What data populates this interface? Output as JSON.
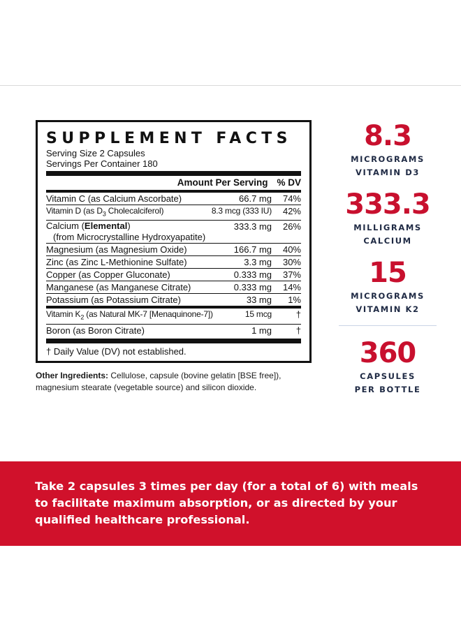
{
  "facts": {
    "title": "SUPPLEMENT FACTS",
    "serving_size": "Serving Size 2 Capsules",
    "servings_per_container": "Servings Per Container 180",
    "header_amount": "Amount Per Serving",
    "header_dv": "% DV",
    "rows": [
      {
        "name": "Vitamin C (as Calcium Ascorbate)",
        "amount": "66.7 mg",
        "dv": "74%"
      },
      {
        "name": "Vitamin D (as D",
        "sub": "3",
        "name_rest": " Cholecalciferol)",
        "amount": "8.3 mcg (333 IU)",
        "dv": "42%"
      },
      {
        "name": "Calcium (",
        "bold": "Elemental",
        "name_rest": ")",
        "line2": "(from Microcrystalline Hydroxyapatite)",
        "amount": "333.3 mg",
        "dv": "26%"
      },
      {
        "name": "Magnesium (as Magnesium Oxide)",
        "amount": "166.7 mg",
        "dv": "40%"
      },
      {
        "name": "Zinc (as Zinc L-Methionine Sulfate)",
        "amount": "3.3 mg",
        "dv": "30%"
      },
      {
        "name": "Copper (as Copper Gluconate)",
        "amount": "0.333 mg",
        "dv": "37%"
      },
      {
        "name": "Manganese (as Manganese Citrate)",
        "amount": "0.333 mg",
        "dv": "14%"
      },
      {
        "name": "Potassium (as Potassium Citrate)",
        "amount": "33 mg",
        "dv": "1%"
      },
      {
        "name": "Vitamin K",
        "sub": "2",
        "name_rest": " (as Natural MK-7 [Menaquinone-7])",
        "amount": "15 mcg",
        "dv": "†"
      },
      {
        "name": "Boron (as Boron Citrate)",
        "amount": "1 mg",
        "dv": "†"
      }
    ],
    "daily_value_note": "† Daily Value (DV) not established."
  },
  "other_ingredients": {
    "label": "Other Ingredients:",
    "text": " Cellulose, capsule (bovine gelatin [BSE free]), magnesium stearate (vegetable source) and silicon dioxide."
  },
  "stats": [
    {
      "value": "8.3",
      "label_1": "MICROGRAMS",
      "label_2": "VITAMIN D3"
    },
    {
      "value": "333.3",
      "label_1": "MILLIGRAMS",
      "label_2": "CALCIUM"
    },
    {
      "value": "15",
      "label_1": "MICROGRAMS",
      "label_2": "VITAMIN K2"
    },
    {
      "value": "360",
      "label_1": "CAPSULES",
      "label_2": "PER BOTTLE"
    }
  ],
  "banner": {
    "text": "Take 2 capsules 3 times per day (for a total of 6) with meals to facilitate maximum absorption, or as directed by your qualified healthcare professional."
  },
  "colors": {
    "accent": "#d0112b",
    "stat_red": "#c8102e",
    "navy": "#1f2a44"
  }
}
